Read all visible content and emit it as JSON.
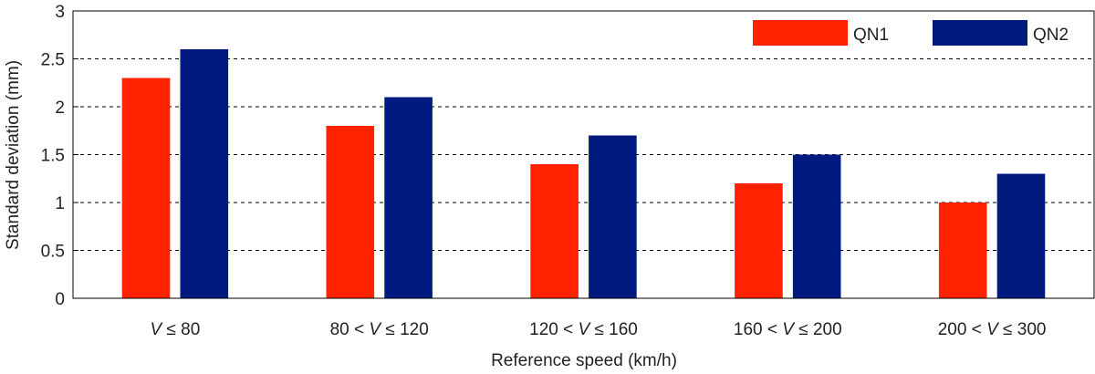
{
  "chart_data": {
    "type": "bar",
    "title": "",
    "xlabel": "Reference speed (km/h)",
    "ylabel": "Standard deviation (mm)",
    "ylim": [
      0,
      3
    ],
    "yticks": [
      "0",
      "0.5",
      "1",
      "1.5",
      "2",
      "2.5",
      "3"
    ],
    "ytick_values": [
      0,
      0.5,
      1,
      1.5,
      2,
      2.5,
      3
    ],
    "grid": "horizontal dashed",
    "legend_position": "top-right",
    "categories": [
      [
        {
          "t": "V",
          "i": true
        },
        {
          "t": " ≤  80",
          "i": false
        }
      ],
      [
        {
          "t": "80 < ",
          "i": false
        },
        {
          "t": "V",
          "i": true
        },
        {
          "t": " ≤ 120",
          "i": false
        }
      ],
      [
        {
          "t": "120 < ",
          "i": false
        },
        {
          "t": "V",
          "i": true
        },
        {
          "t": " ≤ 160",
          "i": false
        }
      ],
      [
        {
          "t": "160 < ",
          "i": false
        },
        {
          "t": "V",
          "i": true
        },
        {
          "t": " ≤ 200",
          "i": false
        }
      ],
      [
        {
          "t": "200 < ",
          "i": false
        },
        {
          "t": "V",
          "i": true
        },
        {
          "t": " ≤ 300",
          "i": false
        }
      ]
    ],
    "series": [
      {
        "name": "QN1",
        "color": "#ff2200",
        "values": [
          2.3,
          1.8,
          1.4,
          1.2,
          1.0
        ]
      },
      {
        "name": "QN2",
        "color": "#001a80",
        "values": [
          2.6,
          2.1,
          1.7,
          1.5,
          1.3
        ]
      }
    ]
  }
}
